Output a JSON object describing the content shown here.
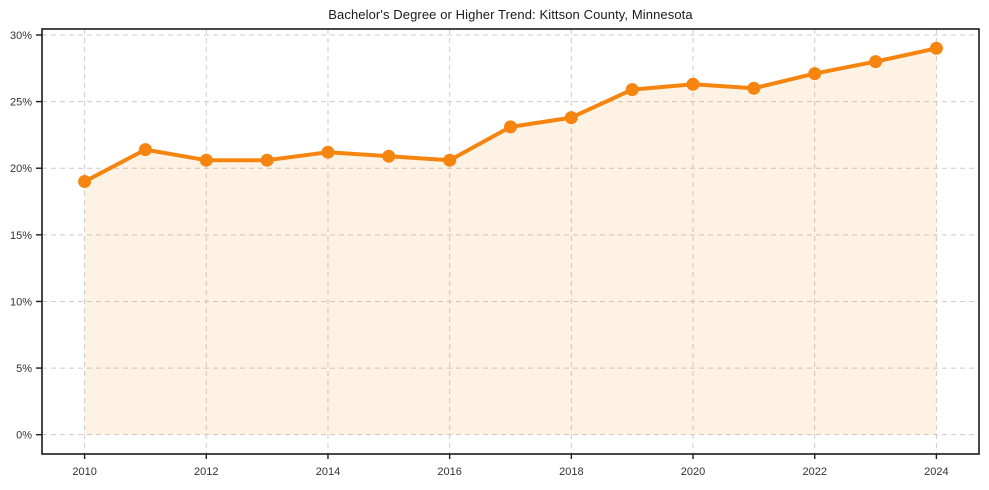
{
  "chart_data": {
    "type": "area",
    "title": "Bachelor's Degree or Higher Trend: Kittson County, Minnesota",
    "xlabel": "",
    "ylabel": "",
    "x": [
      2010,
      2011,
      2012,
      2013,
      2014,
      2015,
      2016,
      2017,
      2018,
      2019,
      2020,
      2021,
      2022,
      2023,
      2024
    ],
    "values": [
      19.0,
      21.4,
      20.6,
      20.6,
      21.2,
      20.9,
      20.6,
      23.1,
      23.8,
      25.9,
      26.3,
      26.0,
      27.1,
      28.0,
      29.0
    ],
    "xlim": [
      2009.3,
      2024.7
    ],
    "ylim": [
      -1.45,
      30.45
    ],
    "x_ticks": [
      2010,
      2012,
      2014,
      2016,
      2018,
      2020,
      2022,
      2024
    ],
    "x_tick_labels": [
      "2010",
      "2012",
      "2014",
      "2016",
      "2018",
      "2020",
      "2022",
      "2024"
    ],
    "y_ticks": [
      0,
      5,
      10,
      15,
      20,
      25,
      30
    ],
    "y_tick_labels": [
      "0%",
      "5%",
      "10%",
      "15%",
      "20%",
      "25%",
      "30%"
    ],
    "grid": true,
    "grid_style": "dashed",
    "legend": "none",
    "line_color": "#f5850f",
    "fill_color": "rgba(246, 133, 17, 0.11)",
    "grid_color": "#cccccc",
    "axis_color": "#1c1c1c",
    "tick_color": "#333333",
    "title_color": "#1a1a1a",
    "marker": "circle"
  }
}
